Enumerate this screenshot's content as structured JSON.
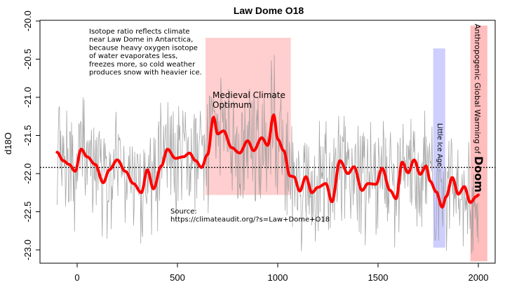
{
  "chart_data": {
    "type": "line",
    "title": "Law Dome O18",
    "xlabel": "",
    "ylabel": "d18O",
    "xlim": [
      -170,
      2090
    ],
    "ylim": [
      -23.17,
      -20.0
    ],
    "xticks": [
      0,
      500,
      1000,
      1500,
      2000
    ],
    "xtick_labels": [
      "0",
      "500",
      "1000",
      "1500",
      "2000"
    ],
    "yticks": [
      -20.0,
      -20.5,
      -21.0,
      -21.5,
      -22.0,
      -22.5,
      -23.0
    ],
    "ytick_labels": [
      "-20.0",
      "-20.5",
      "-21.0",
      "-21.5",
      "-22.0",
      "-22.5",
      "-23.0"
    ],
    "reference_line": {
      "y": -21.92,
      "style": "dotted",
      "color": "#000000"
    },
    "series": [
      {
        "name": "annual d18O",
        "color": "#999999",
        "seed": 18,
        "note": "raw annual series rendered as noisy grey line around the smoothed curve"
      },
      {
        "name": "smoothed",
        "color": "#ff0000",
        "x": [
          -100,
          -70,
          -40,
          -10,
          20,
          50,
          90,
          130,
          160,
          200,
          240,
          280,
          320,
          350,
          380,
          420,
          450,
          490,
          530,
          560,
          590,
          620,
          650,
          680,
          700,
          730,
          770,
          810,
          850,
          880,
          920,
          950,
          980,
          1000,
          1030,
          1060,
          1080,
          1110,
          1140,
          1170,
          1200,
          1240,
          1270,
          1310,
          1350,
          1380,
          1420,
          1450,
          1490,
          1520,
          1560,
          1590,
          1620,
          1650,
          1680,
          1710,
          1740,
          1760,
          1790,
          1820,
          1840,
          1870,
          1900,
          1930,
          1960,
          1990,
          2000
        ],
        "y": [
          -21.72,
          -21.83,
          -21.88,
          -21.97,
          -21.68,
          -21.78,
          -21.88,
          -22.12,
          -21.95,
          -21.82,
          -21.97,
          -22.13,
          -22.25,
          -21.95,
          -22.2,
          -21.9,
          -21.68,
          -21.8,
          -21.78,
          -21.73,
          -21.83,
          -21.92,
          -21.75,
          -21.26,
          -21.48,
          -21.44,
          -21.66,
          -21.73,
          -21.57,
          -21.7,
          -21.53,
          -21.63,
          -21.23,
          -21.55,
          -21.7,
          -22.03,
          -22.04,
          -22.23,
          -22.04,
          -22.25,
          -22.18,
          -22.13,
          -22.37,
          -21.83,
          -22.0,
          -21.91,
          -22.22,
          -22.13,
          -22.14,
          -21.93,
          -22.22,
          -22.33,
          -21.85,
          -21.99,
          -21.82,
          -22.01,
          -21.9,
          -22.1,
          -22.24,
          -22.44,
          -22.3,
          -22.05,
          -22.27,
          -22.17,
          -22.38,
          -22.3,
          -22.28
        ]
      }
    ],
    "regions": [
      {
        "name": "Medieval Climate Optimum",
        "label_lines": [
          "Medieval Climate",
          "Optimum"
        ],
        "x": [
          640,
          1065
        ],
        "y": [
          -22.28,
          -20.22
        ],
        "color": "#ffb3b3"
      },
      {
        "name": "Little Ice Age",
        "label": "Little Ice Age",
        "x": [
          1775,
          1835
        ],
        "y": [
          -22.97,
          -20.36
        ],
        "color": "#b3b3ff"
      },
      {
        "name": "Anthropogenic Global Warming of Doom",
        "label_prefix": "Anthropogenic Global Warming of ",
        "label_emph": "Doom",
        "x": [
          1960,
          2045
        ],
        "y": [
          -23.15,
          -20.06
        ],
        "color": "#ff9999"
      }
    ],
    "annotations": {
      "description_lines": [
        "Isotope ratio reflects climate",
        "near Law Dome in Antarctica,",
        "because heavy oxygen isotope",
        "of water evaporates less,",
        "freezes more, so cold weather",
        "produces snow with heavier ice."
      ],
      "source_lines": [
        "Source:",
        "https://climateaudit.org/?s=Law+Dome+O18"
      ]
    },
    "grid": false,
    "legend": "none"
  }
}
